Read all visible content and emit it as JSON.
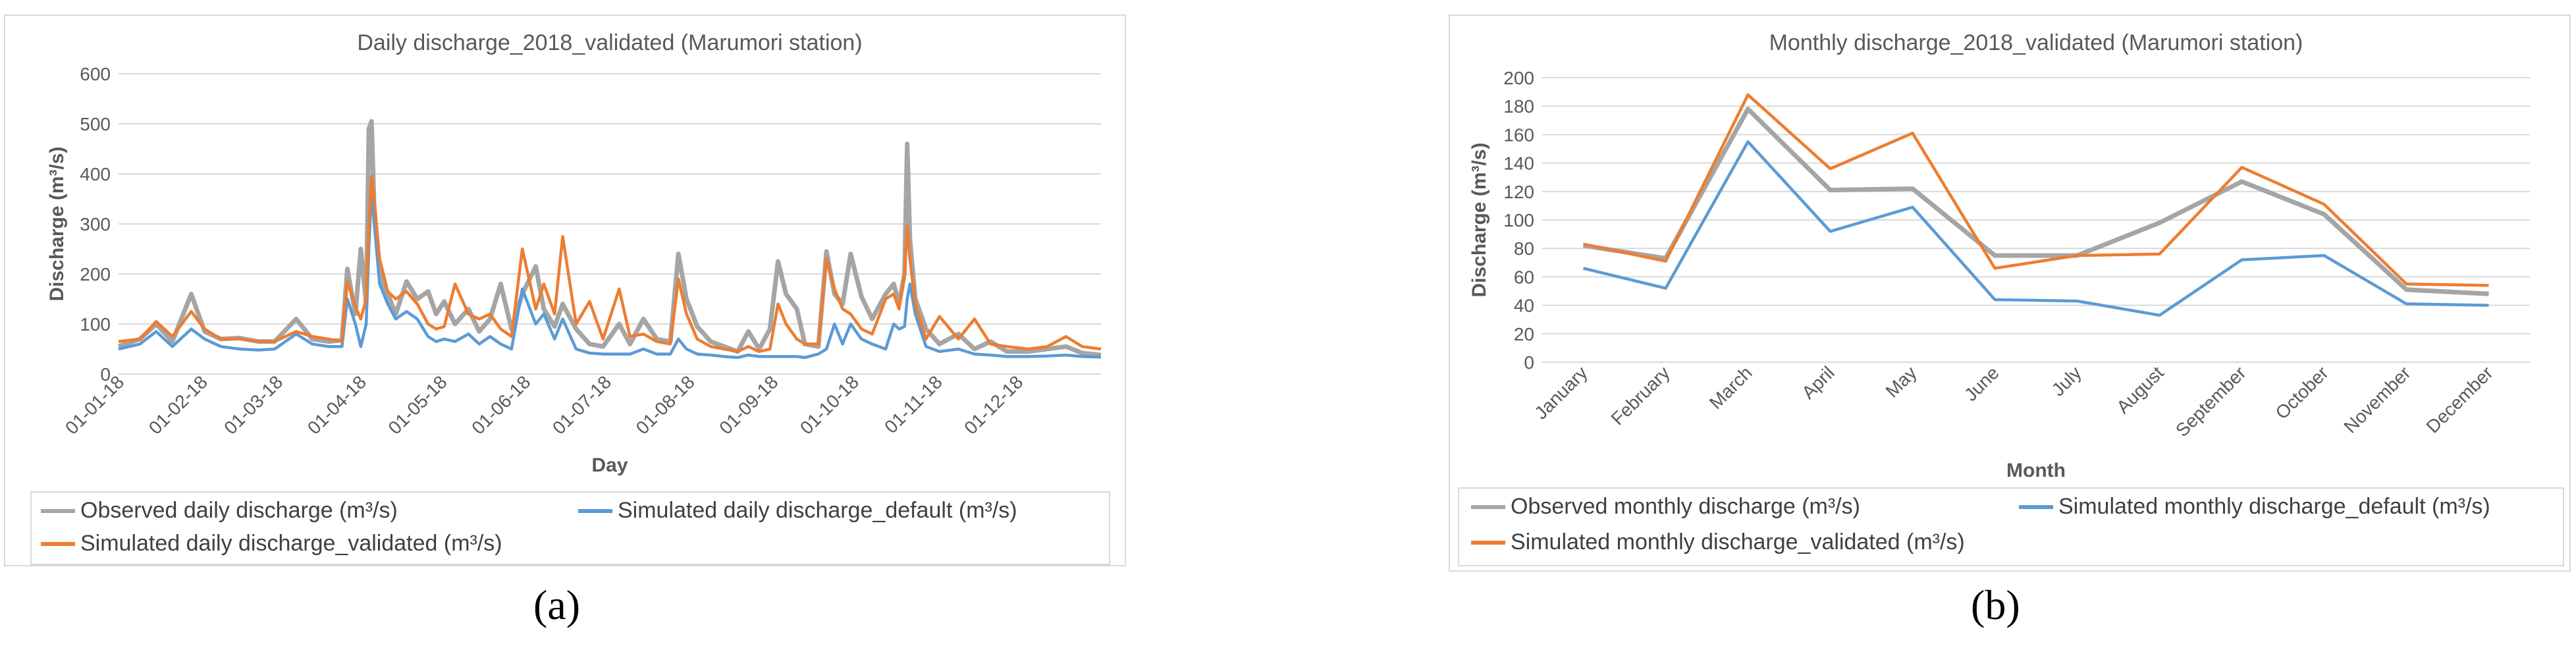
{
  "chart_data": [
    {
      "type": "line",
      "title": "Daily discharge_2018_validated (Marumori station)",
      "xlabel": "Day",
      "ylabel": "Discharge (m³/s)",
      "ylim": [
        0,
        600
      ],
      "y_ticks": [
        "0",
        "100",
        "200",
        "300",
        "400",
        "500",
        "600"
      ],
      "x_ticks": [
        "01-01-18",
        "01-02-18",
        "01-03-18",
        "01-04-18",
        "01-05-18",
        "01-06-18",
        "01-07-18",
        "01-08-18",
        "01-09-18",
        "01-10-18",
        "01-11-18",
        "01-12-18"
      ],
      "x_range_days": [
        0,
        365
      ],
      "grid": "horizontal",
      "legend_position": "bottom",
      "series": [
        {
          "name": "Observed daily discharge (m³/s)",
          "color": "#a5a5a5",
          "points": [
            [
              0,
              55
            ],
            [
              8,
              70
            ],
            [
              14,
              100
            ],
            [
              20,
              65
            ],
            [
              27,
              160
            ],
            [
              32,
              85
            ],
            [
              38,
              70
            ],
            [
              45,
              72
            ],
            [
              52,
              65
            ],
            [
              58,
              65
            ],
            [
              66,
              110
            ],
            [
              72,
              70
            ],
            [
              78,
              65
            ],
            [
              83,
              68
            ],
            [
              85,
              210
            ],
            [
              88,
              120
            ],
            [
              90,
              250
            ],
            [
              92,
              140
            ],
            [
              93,
              490
            ],
            [
              94,
              505
            ],
            [
              95,
              330
            ],
            [
              97,
              200
            ],
            [
              100,
              160
            ],
            [
              103,
              120
            ],
            [
              107,
              185
            ],
            [
              111,
              150
            ],
            [
              115,
              165
            ],
            [
              118,
              120
            ],
            [
              121,
              145
            ],
            [
              125,
              100
            ],
            [
              130,
              130
            ],
            [
              134,
              85
            ],
            [
              138,
              110
            ],
            [
              142,
              180
            ],
            [
              146,
              90
            ],
            [
              150,
              160
            ],
            [
              155,
              215
            ],
            [
              158,
              130
            ],
            [
              162,
              95
            ],
            [
              165,
              140
            ],
            [
              170,
              90
            ],
            [
              175,
              60
            ],
            [
              180,
              55
            ],
            [
              186,
              100
            ],
            [
              190,
              60
            ],
            [
              195,
              110
            ],
            [
              200,
              70
            ],
            [
              205,
              65
            ],
            [
              208,
              240
            ],
            [
              211,
              150
            ],
            [
              215,
              95
            ],
            [
              220,
              65
            ],
            [
              225,
              55
            ],
            [
              230,
              45
            ],
            [
              234,
              85
            ],
            [
              238,
              50
            ],
            [
              242,
              90
            ],
            [
              245,
              225
            ],
            [
              248,
              160
            ],
            [
              252,
              130
            ],
            [
              255,
              60
            ],
            [
              260,
              55
            ],
            [
              263,
              245
            ],
            [
              266,
              160
            ],
            [
              269,
              140
            ],
            [
              272,
              240
            ],
            [
              276,
              155
            ],
            [
              280,
              110
            ],
            [
              285,
              160
            ],
            [
              288,
              180
            ],
            [
              290,
              140
            ],
            [
              292,
              200
            ],
            [
              293,
              460
            ],
            [
              294,
              270
            ],
            [
              296,
              150
            ],
            [
              300,
              90
            ],
            [
              305,
              60
            ],
            [
              312,
              80
            ],
            [
              318,
              50
            ],
            [
              324,
              65
            ],
            [
              330,
              45
            ],
            [
              338,
              45
            ],
            [
              345,
              50
            ],
            [
              352,
              55
            ],
            [
              358,
              42
            ],
            [
              365,
              38
            ]
          ]
        },
        {
          "name": "Simulated daily discharge_default (m³/s)",
          "color": "#5b9bd5",
          "points": [
            [
              0,
              50
            ],
            [
              8,
              60
            ],
            [
              14,
              85
            ],
            [
              20,
              55
            ],
            [
              27,
              90
            ],
            [
              32,
              70
            ],
            [
              38,
              55
            ],
            [
              45,
              50
            ],
            [
              52,
              48
            ],
            [
              58,
              50
            ],
            [
              66,
              80
            ],
            [
              72,
              60
            ],
            [
              78,
              55
            ],
            [
              83,
              55
            ],
            [
              85,
              150
            ],
            [
              88,
              100
            ],
            [
              90,
              55
            ],
            [
              92,
              100
            ],
            [
              93,
              250
            ],
            [
              94,
              370
            ],
            [
              95,
              300
            ],
            [
              97,
              180
            ],
            [
              100,
              140
            ],
            [
              103,
              110
            ],
            [
              107,
              125
            ],
            [
              111,
              110
            ],
            [
              115,
              75
            ],
            [
              118,
              65
            ],
            [
              121,
              70
            ],
            [
              125,
              65
            ],
            [
              130,
              80
            ],
            [
              134,
              60
            ],
            [
              138,
              75
            ],
            [
              142,
              60
            ],
            [
              146,
              50
            ],
            [
              150,
              170
            ],
            [
              155,
              100
            ],
            [
              158,
              120
            ],
            [
              162,
              70
            ],
            [
              165,
              110
            ],
            [
              170,
              50
            ],
            [
              175,
              42
            ],
            [
              180,
              40
            ],
            [
              186,
              40
            ],
            [
              190,
              40
            ],
            [
              195,
              50
            ],
            [
              200,
              40
            ],
            [
              205,
              40
            ],
            [
              208,
              70
            ],
            [
              211,
              50
            ],
            [
              215,
              40
            ],
            [
              220,
              38
            ],
            [
              225,
              35
            ],
            [
              230,
              33
            ],
            [
              234,
              38
            ],
            [
              238,
              35
            ],
            [
              242,
              35
            ],
            [
              245,
              35
            ],
            [
              248,
              35
            ],
            [
              252,
              35
            ],
            [
              255,
              33
            ],
            [
              260,
              40
            ],
            [
              263,
              50
            ],
            [
              266,
              100
            ],
            [
              269,
              60
            ],
            [
              272,
              100
            ],
            [
              276,
              70
            ],
            [
              280,
              60
            ],
            [
              285,
              50
            ],
            [
              288,
              100
            ],
            [
              290,
              90
            ],
            [
              292,
              95
            ],
            [
              293,
              150
            ],
            [
              294,
              180
            ],
            [
              296,
              120
            ],
            [
              300,
              55
            ],
            [
              305,
              45
            ],
            [
              312,
              50
            ],
            [
              318,
              40
            ],
            [
              324,
              38
            ],
            [
              330,
              35
            ],
            [
              338,
              35
            ],
            [
              345,
              36
            ],
            [
              352,
              38
            ],
            [
              358,
              35
            ],
            [
              365,
              34
            ]
          ]
        },
        {
          "name": "Simulated daily discharge_validated (m³/s)",
          "color": "#ed7d31",
          "points": [
            [
              0,
              65
            ],
            [
              8,
              70
            ],
            [
              14,
              105
            ],
            [
              20,
              75
            ],
            [
              27,
              125
            ],
            [
              32,
              90
            ],
            [
              38,
              70
            ],
            [
              45,
              70
            ],
            [
              52,
              65
            ],
            [
              58,
              65
            ],
            [
              66,
              85
            ],
            [
              72,
              75
            ],
            [
              78,
              70
            ],
            [
              83,
              65
            ],
            [
              85,
              185
            ],
            [
              88,
              135
            ],
            [
              90,
              110
            ],
            [
              92,
              150
            ],
            [
              93,
              300
            ],
            [
              94,
              395
            ],
            [
              95,
              350
            ],
            [
              97,
              230
            ],
            [
              100,
              165
            ],
            [
              103,
              150
            ],
            [
              107,
              165
            ],
            [
              111,
              140
            ],
            [
              115,
              100
            ],
            [
              118,
              90
            ],
            [
              121,
              95
            ],
            [
              125,
              180
            ],
            [
              130,
              120
            ],
            [
              134,
              110
            ],
            [
              138,
              120
            ],
            [
              142,
              90
            ],
            [
              146,
              75
            ],
            [
              150,
              250
            ],
            [
              155,
              130
            ],
            [
              158,
              180
            ],
            [
              162,
              120
            ],
            [
              165,
              275
            ],
            [
              170,
              100
            ],
            [
              175,
              145
            ],
            [
              180,
              70
            ],
            [
              186,
              170
            ],
            [
              190,
              75
            ],
            [
              195,
              80
            ],
            [
              200,
              65
            ],
            [
              205,
              60
            ],
            [
              208,
              190
            ],
            [
              211,
              120
            ],
            [
              215,
              70
            ],
            [
              220,
              55
            ],
            [
              225,
              50
            ],
            [
              230,
              45
            ],
            [
              234,
              55
            ],
            [
              238,
              45
            ],
            [
              242,
              50
            ],
            [
              245,
              140
            ],
            [
              248,
              100
            ],
            [
              252,
              70
            ],
            [
              255,
              60
            ],
            [
              260,
              60
            ],
            [
              263,
              230
            ],
            [
              266,
              170
            ],
            [
              269,
              130
            ],
            [
              272,
              120
            ],
            [
              276,
              90
            ],
            [
              280,
              80
            ],
            [
              285,
              150
            ],
            [
              288,
              160
            ],
            [
              290,
              130
            ],
            [
              292,
              200
            ],
            [
              293,
              295
            ],
            [
              294,
              230
            ],
            [
              296,
              140
            ],
            [
              300,
              70
            ],
            [
              305,
              115
            ],
            [
              312,
              70
            ],
            [
              318,
              110
            ],
            [
              324,
              60
            ],
            [
              330,
              55
            ],
            [
              338,
              50
            ],
            [
              345,
              55
            ],
            [
              352,
              75
            ],
            [
              358,
              55
            ],
            [
              365,
              50
            ]
          ]
        }
      ]
    },
    {
      "type": "line",
      "title": "Monthly discharge_2018_validated (Marumori station)",
      "xlabel": "Month",
      "ylabel": "Discharge (m³/s)",
      "ylim": [
        0,
        200
      ],
      "y_ticks": [
        "0",
        "20",
        "40",
        "60",
        "80",
        "100",
        "120",
        "140",
        "160",
        "180",
        "200"
      ],
      "categories": [
        "January",
        "February",
        "March",
        "April",
        "May",
        "June",
        "July",
        "August",
        "September",
        "October",
        "November",
        "December"
      ],
      "grid": "horizontal",
      "legend_position": "bottom",
      "series": [
        {
          "name": "Observed monthly discharge (m³/s)",
          "color": "#a5a5a5",
          "values": [
            82,
            73,
            178,
            121,
            122,
            75,
            75,
            98,
            127,
            104,
            51,
            48
          ]
        },
        {
          "name": "Simulated monthly discharge_default (m³/s)",
          "color": "#5b9bd5",
          "values": [
            66,
            52,
            155,
            92,
            109,
            44,
            43,
            33,
            72,
            75,
            41,
            40
          ]
        },
        {
          "name": "Simulated monthly discharge_validated (m³/s)",
          "color": "#ed7d31",
          "values": [
            83,
            71,
            188,
            136,
            161,
            66,
            75,
            76,
            137,
            111,
            55,
            54
          ]
        }
      ]
    }
  ],
  "captions": [
    "(a)",
    "(b)"
  ]
}
